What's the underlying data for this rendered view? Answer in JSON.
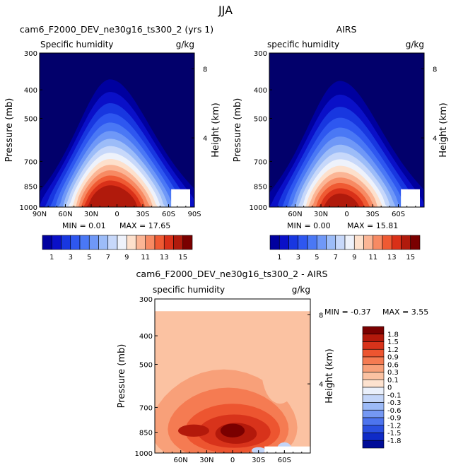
{
  "page_title": "JJA",
  "chart_data": [
    {
      "type": "heatmap",
      "title": "cam6_F2000_DEV_ne30g16_ts300_2 (yrs 1)",
      "subtitle_left": "Specific humidity",
      "subtitle_right": "g/kg",
      "ylabel": "Pressure (mb)",
      "ylabel_right": "Height (km)",
      "xticks": [
        "90N",
        "60N",
        "30N",
        "0",
        "30S",
        "60S",
        "90S"
      ],
      "xtick_values": [
        90,
        60,
        30,
        0,
        -30,
        -60,
        -90
      ],
      "xlim": [
        90,
        -90
      ],
      "yticks": [
        "300",
        "400",
        "500",
        "700",
        "850",
        "1000"
      ],
      "ytick_values": [
        300,
        400,
        500,
        700,
        850,
        1000
      ],
      "ylim": [
        300,
        1000
      ],
      "height_ticks": [
        "8",
        "4"
      ],
      "height_tick_values": [
        8,
        4
      ],
      "peak_value": 17.65,
      "peak_lat": 8,
      "min_text": "MIN =  0.01",
      "max_text": "MAX =  17.65",
      "colorbar": {
        "levels": [
          1,
          2,
          3,
          4,
          5,
          6,
          7,
          8,
          9,
          10,
          11,
          12,
          13,
          14,
          15
        ],
        "labels": [
          "1",
          "3",
          "5",
          "7",
          "9",
          "11",
          "13",
          "15"
        ]
      }
    },
    {
      "type": "heatmap",
      "title": "AIRS",
      "subtitle_left": "specific humidity",
      "subtitle_right": "g/kg",
      "ylabel": "Pressure (mb)",
      "ylabel_right": "Height (km)",
      "xticks": [
        "60N",
        "30N",
        "0",
        "30S",
        "60S"
      ],
      "xtick_values": [
        60,
        30,
        0,
        -30,
        -60
      ],
      "xlim": [
        90,
        -90
      ],
      "yticks": [
        "300",
        "400",
        "500",
        "700",
        "850",
        "1000"
      ],
      "ytick_values": [
        300,
        400,
        500,
        700,
        850,
        1000
      ],
      "ylim": [
        300,
        1000
      ],
      "height_ticks": [
        "8",
        "4"
      ],
      "height_tick_values": [
        8,
        4
      ],
      "peak_value": 15.81,
      "peak_lat": 8,
      "min_text": "MIN =  0.00",
      "max_text": "MAX =  15.81",
      "colorbar": {
        "levels": [
          1,
          2,
          3,
          4,
          5,
          6,
          7,
          8,
          9,
          10,
          11,
          12,
          13,
          14,
          15
        ],
        "labels": [
          "1",
          "3",
          "5",
          "7",
          "9",
          "11",
          "13",
          "15"
        ]
      }
    },
    {
      "type": "heatmap",
      "title": "cam6_F2000_DEV_ne30g16_ts300_2 - AIRS",
      "subtitle_left": "specific humidity",
      "subtitle_right": "g/kg",
      "ylabel": "Pressure (mb)",
      "ylabel_right": "Height (km)",
      "xticks": [
        "60N",
        "30N",
        "0",
        "30S",
        "60S"
      ],
      "xtick_values": [
        60,
        30,
        0,
        -30,
        -60
      ],
      "xlim": [
        90,
        -90
      ],
      "yticks": [
        "300",
        "400",
        "500",
        "700",
        "850",
        "1000"
      ],
      "ytick_values": [
        300,
        400,
        500,
        700,
        850,
        1000
      ],
      "ylim": [
        300,
        1000
      ],
      "height_ticks": [
        "8",
        "4"
      ],
      "height_tick_values": [
        8,
        4
      ],
      "min_text": "MIN = -0.37",
      "max_text": "MAX =  3.55",
      "colorbar": {
        "levels": [
          -1.8,
          -1.5,
          -1.2,
          -0.9,
          -0.6,
          -0.3,
          -0.1,
          0,
          0.1,
          0.3,
          0.6,
          0.9,
          1.2,
          1.5,
          1.8
        ],
        "labels": [
          "1.8",
          "1.5",
          "1.2",
          "0.9",
          "0.6",
          "0.3",
          "0.1",
          "0",
          "-0.1",
          "-0.3",
          "-0.6",
          "-0.9",
          "-1.2",
          "-1.5",
          "-1.8"
        ]
      }
    }
  ],
  "colors": {
    "humidity_scale": [
      "#02006b",
      "#00009f",
      "#0a10c8",
      "#1837e0",
      "#2e57f0",
      "#4a78f5",
      "#6f98f7",
      "#9cbcf8",
      "#c7d8fa",
      "#eef2fb",
      "#fde0cc",
      "#fbb595",
      "#f78a63",
      "#ef5a33",
      "#d93018",
      "#b01a0c",
      "#7a0000"
    ],
    "diff_scale": [
      "#7a0000",
      "#b3190b",
      "#d8331b",
      "#ed5530",
      "#f57b52",
      "#f8a079",
      "#fbc2a2",
      "#fde2cf",
      "#eaf0fb",
      "#c3d5f8",
      "#9cbaf7",
      "#7598f3",
      "#4d74ee",
      "#2a4fe0",
      "#0f2bc7",
      "#000c98"
    ]
  }
}
